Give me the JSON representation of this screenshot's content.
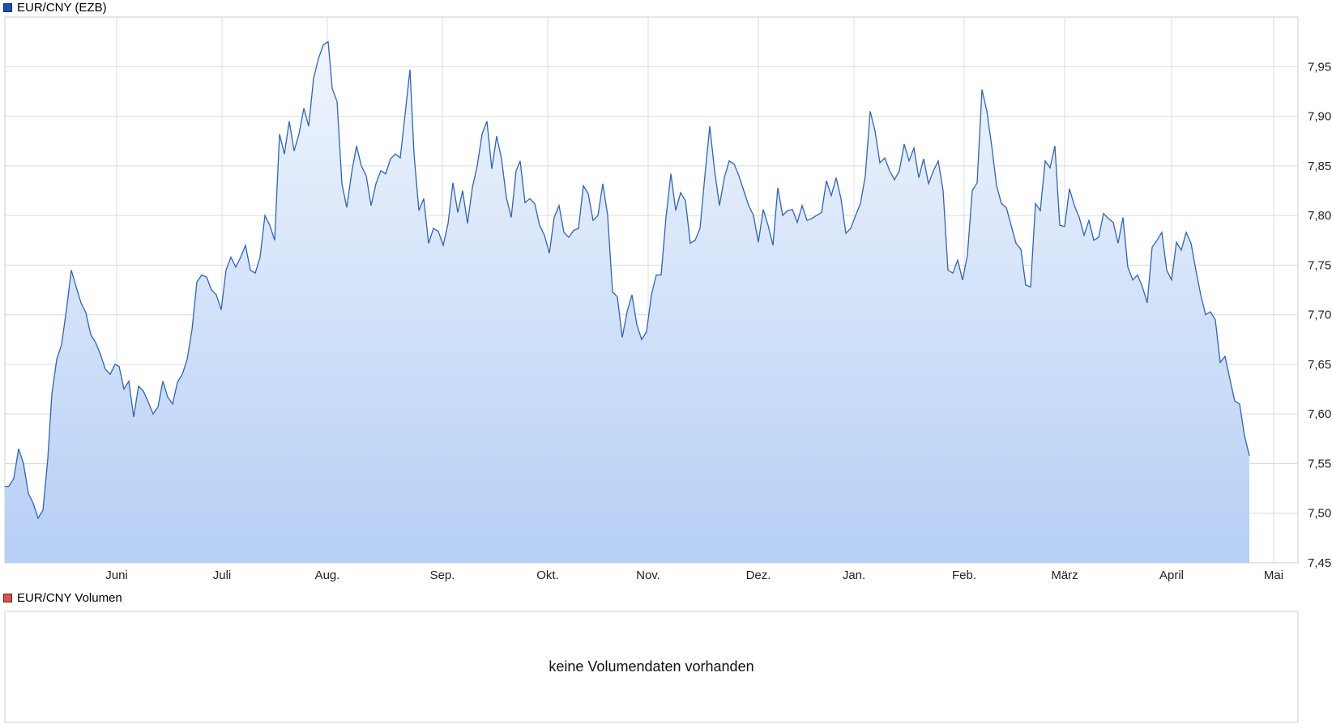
{
  "price_panel": {
    "legend": "EUR/CNY (EZB)",
    "swatch_color": "#1f4fb4"
  },
  "volume_panel": {
    "legend": "EUR/CNY Volumen",
    "swatch_color": "#d9534f",
    "message": "keine Volumendaten vorhanden"
  },
  "colors": {
    "line": "#2c63c5",
    "fill_top": "#f0f5fd",
    "fill_bottom": "#b6cff5",
    "grid": "#dcdcdc",
    "border": "#cfcfcf"
  },
  "chart_data": {
    "type": "area",
    "title": "EUR/CNY (EZB)",
    "ylim": [
      7.45,
      8.0
    ],
    "yticks": [
      7.45,
      7.5,
      7.55,
      7.6,
      7.65,
      7.7,
      7.75,
      7.8,
      7.85,
      7.9,
      7.95
    ],
    "ytick_labels": [
      "7,45",
      "7,50",
      "7,55",
      "7,60",
      "7,65",
      "7,70",
      "7,75",
      "7,80",
      "7,85",
      "7,90",
      "7,95"
    ],
    "y_axis_side": "right",
    "grid": true,
    "x_index_range": [
      0,
      1596
    ],
    "xticks": [
      {
        "label": "Juni",
        "i": 138
      },
      {
        "label": "Juli",
        "i": 268
      },
      {
        "label": "Aug.",
        "i": 398
      },
      {
        "label": "Sep.",
        "i": 540
      },
      {
        "label": "Okt.",
        "i": 670
      },
      {
        "label": "Nov.",
        "i": 794
      },
      {
        "label": "Dez.",
        "i": 930
      },
      {
        "label": "Jan.",
        "i": 1048
      },
      {
        "label": "Feb.",
        "i": 1184
      },
      {
        "label": "März",
        "i": 1308
      },
      {
        "label": "April",
        "i": 1440
      },
      {
        "label": "Mai",
        "i": 1566
      }
    ],
    "series": [
      {
        "values": [
          [
            0,
            7.527
          ],
          [
            5,
            7.527
          ],
          [
            11,
            7.535
          ],
          [
            17,
            7.565
          ],
          [
            23,
            7.55
          ],
          [
            29,
            7.52
          ],
          [
            35,
            7.51
          ],
          [
            41,
            7.495
          ],
          [
            47,
            7.503
          ],
          [
            53,
            7.555
          ],
          [
            58,
            7.62
          ],
          [
            64,
            7.655
          ],
          [
            70,
            7.67
          ],
          [
            76,
            7.705
          ],
          [
            82,
            7.745
          ],
          [
            88,
            7.728
          ],
          [
            94,
            7.712
          ],
          [
            100,
            7.702
          ],
          [
            106,
            7.68
          ],
          [
            112,
            7.672
          ],
          [
            118,
            7.66
          ],
          [
            124,
            7.645
          ],
          [
            130,
            7.64
          ],
          [
            136,
            7.65
          ],
          [
            141,
            7.648
          ],
          [
            147,
            7.625
          ],
          [
            153,
            7.633
          ],
          [
            159,
            7.597
          ],
          [
            165,
            7.628
          ],
          [
            171,
            7.623
          ],
          [
            177,
            7.612
          ],
          [
            183,
            7.6
          ],
          [
            189,
            7.607
          ],
          [
            195,
            7.633
          ],
          [
            201,
            7.617
          ],
          [
            207,
            7.61
          ],
          [
            213,
            7.632
          ],
          [
            219,
            7.64
          ],
          [
            225,
            7.655
          ],
          [
            231,
            7.685
          ],
          [
            237,
            7.733
          ],
          [
            243,
            7.74
          ],
          [
            249,
            7.738
          ],
          [
            255,
            7.725
          ],
          [
            261,
            7.72
          ],
          [
            267,
            7.705
          ],
          [
            273,
            7.745
          ],
          [
            279,
            7.758
          ],
          [
            285,
            7.748
          ],
          [
            291,
            7.758
          ],
          [
            297,
            7.77
          ],
          [
            303,
            7.745
          ],
          [
            309,
            7.742
          ],
          [
            315,
            7.758
          ],
          [
            321,
            7.8
          ],
          [
            327,
            7.79
          ],
          [
            333,
            7.775
          ],
          [
            339,
            7.882
          ],
          [
            345,
            7.862
          ],
          [
            351,
            7.895
          ],
          [
            357,
            7.865
          ],
          [
            363,
            7.882
          ],
          [
            369,
            7.908
          ],
          [
            375,
            7.89
          ],
          [
            381,
            7.938
          ],
          [
            387,
            7.958
          ],
          [
            393,
            7.972
          ],
          [
            399,
            7.975
          ],
          [
            404,
            7.928
          ],
          [
            410,
            7.915
          ],
          [
            416,
            7.832
          ],
          [
            422,
            7.808
          ],
          [
            428,
            7.843
          ],
          [
            434,
            7.87
          ],
          [
            440,
            7.85
          ],
          [
            446,
            7.84
          ],
          [
            452,
            7.81
          ],
          [
            458,
            7.832
          ],
          [
            464,
            7.845
          ],
          [
            470,
            7.842
          ],
          [
            476,
            7.857
          ],
          [
            482,
            7.862
          ],
          [
            488,
            7.858
          ],
          [
            494,
            7.902
          ],
          [
            500,
            7.947
          ],
          [
            505,
            7.862
          ],
          [
            511,
            7.805
          ],
          [
            517,
            7.817
          ],
          [
            523,
            7.772
          ],
          [
            529,
            7.787
          ],
          [
            535,
            7.784
          ],
          [
            541,
            7.77
          ],
          [
            547,
            7.792
          ],
          [
            553,
            7.833
          ],
          [
            559,
            7.803
          ],
          [
            565,
            7.825
          ],
          [
            571,
            7.792
          ],
          [
            577,
            7.828
          ],
          [
            583,
            7.85
          ],
          [
            589,
            7.882
          ],
          [
            595,
            7.895
          ],
          [
            601,
            7.847
          ],
          [
            607,
            7.88
          ],
          [
            613,
            7.857
          ],
          [
            619,
            7.818
          ],
          [
            625,
            7.798
          ],
          [
            631,
            7.845
          ],
          [
            636,
            7.855
          ],
          [
            642,
            7.813
          ],
          [
            648,
            7.817
          ],
          [
            654,
            7.812
          ],
          [
            660,
            7.79
          ],
          [
            666,
            7.78
          ],
          [
            672,
            7.762
          ],
          [
            678,
            7.798
          ],
          [
            684,
            7.81
          ],
          [
            690,
            7.783
          ],
          [
            696,
            7.778
          ],
          [
            702,
            7.785
          ],
          [
            708,
            7.787
          ],
          [
            714,
            7.83
          ],
          [
            720,
            7.822
          ],
          [
            726,
            7.795
          ],
          [
            732,
            7.8
          ],
          [
            738,
            7.832
          ],
          [
            744,
            7.8
          ],
          [
            750,
            7.723
          ],
          [
            756,
            7.718
          ],
          [
            762,
            7.677
          ],
          [
            768,
            7.703
          ],
          [
            774,
            7.72
          ],
          [
            780,
            7.69
          ],
          [
            786,
            7.675
          ],
          [
            792,
            7.683
          ],
          [
            798,
            7.72
          ],
          [
            804,
            7.74
          ],
          [
            810,
            7.74
          ],
          [
            816,
            7.798
          ],
          [
            822,
            7.842
          ],
          [
            828,
            7.805
          ],
          [
            834,
            7.823
          ],
          [
            840,
            7.815
          ],
          [
            846,
            7.772
          ],
          [
            852,
            7.775
          ],
          [
            858,
            7.787
          ],
          [
            864,
            7.84
          ],
          [
            870,
            7.89
          ],
          [
            876,
            7.845
          ],
          [
            882,
            7.81
          ],
          [
            888,
            7.838
          ],
          [
            894,
            7.855
          ],
          [
            900,
            7.852
          ],
          [
            906,
            7.84
          ],
          [
            912,
            7.825
          ],
          [
            918,
            7.81
          ],
          [
            924,
            7.8
          ],
          [
            930,
            7.773
          ],
          [
            936,
            7.806
          ],
          [
            942,
            7.79
          ],
          [
            948,
            7.77
          ],
          [
            954,
            7.828
          ],
          [
            960,
            7.8
          ],
          [
            966,
            7.805
          ],
          [
            972,
            7.806
          ],
          [
            978,
            7.793
          ],
          [
            984,
            7.81
          ],
          [
            990,
            7.795
          ],
          [
            996,
            7.797
          ],
          [
            1002,
            7.8
          ],
          [
            1008,
            7.803
          ],
          [
            1014,
            7.835
          ],
          [
            1020,
            7.82
          ],
          [
            1026,
            7.838
          ],
          [
            1032,
            7.817
          ],
          [
            1038,
            7.782
          ],
          [
            1044,
            7.787
          ],
          [
            1050,
            7.8
          ],
          [
            1056,
            7.812
          ],
          [
            1062,
            7.84
          ],
          [
            1068,
            7.905
          ],
          [
            1074,
            7.885
          ],
          [
            1080,
            7.853
          ],
          [
            1086,
            7.858
          ],
          [
            1092,
            7.845
          ],
          [
            1098,
            7.836
          ],
          [
            1104,
            7.845
          ],
          [
            1110,
            7.872
          ],
          [
            1116,
            7.855
          ],
          [
            1122,
            7.868
          ],
          [
            1128,
            7.838
          ],
          [
            1134,
            7.857
          ],
          [
            1140,
            7.832
          ],
          [
            1146,
            7.845
          ],
          [
            1152,
            7.855
          ],
          [
            1158,
            7.825
          ],
          [
            1164,
            7.745
          ],
          [
            1170,
            7.742
          ],
          [
            1176,
            7.755
          ],
          [
            1182,
            7.735
          ],
          [
            1188,
            7.76
          ],
          [
            1194,
            7.825
          ],
          [
            1200,
            7.833
          ],
          [
            1206,
            7.927
          ],
          [
            1212,
            7.905
          ],
          [
            1218,
            7.87
          ],
          [
            1224,
            7.83
          ],
          [
            1230,
            7.812
          ],
          [
            1236,
            7.808
          ],
          [
            1242,
            7.79
          ],
          [
            1248,
            7.772
          ],
          [
            1254,
            7.766
          ],
          [
            1260,
            7.73
          ],
          [
            1266,
            7.728
          ],
          [
            1272,
            7.812
          ],
          [
            1278,
            7.805
          ],
          [
            1284,
            7.855
          ],
          [
            1290,
            7.848
          ],
          [
            1296,
            7.87
          ],
          [
            1302,
            7.79
          ],
          [
            1308,
            7.789
          ],
          [
            1314,
            7.827
          ],
          [
            1320,
            7.81
          ],
          [
            1326,
            7.798
          ],
          [
            1332,
            7.78
          ],
          [
            1338,
            7.795
          ],
          [
            1344,
            7.775
          ],
          [
            1350,
            7.778
          ],
          [
            1356,
            7.802
          ],
          [
            1362,
            7.797
          ],
          [
            1368,
            7.793
          ],
          [
            1374,
            7.772
          ],
          [
            1380,
            7.798
          ],
          [
            1386,
            7.748
          ],
          [
            1392,
            7.735
          ],
          [
            1398,
            7.74
          ],
          [
            1404,
            7.728
          ],
          [
            1410,
            7.712
          ],
          [
            1416,
            7.768
          ],
          [
            1422,
            7.775
          ],
          [
            1428,
            7.783
          ],
          [
            1434,
            7.745
          ],
          [
            1440,
            7.735
          ],
          [
            1446,
            7.773
          ],
          [
            1452,
            7.765
          ],
          [
            1458,
            7.783
          ],
          [
            1464,
            7.772
          ],
          [
            1470,
            7.745
          ],
          [
            1476,
            7.72
          ],
          [
            1482,
            7.7
          ],
          [
            1488,
            7.703
          ],
          [
            1494,
            7.695
          ],
          [
            1500,
            7.652
          ],
          [
            1506,
            7.658
          ],
          [
            1512,
            7.635
          ],
          [
            1518,
            7.613
          ],
          [
            1524,
            7.61
          ],
          [
            1530,
            7.578
          ],
          [
            1536,
            7.558
          ]
        ]
      }
    ]
  }
}
